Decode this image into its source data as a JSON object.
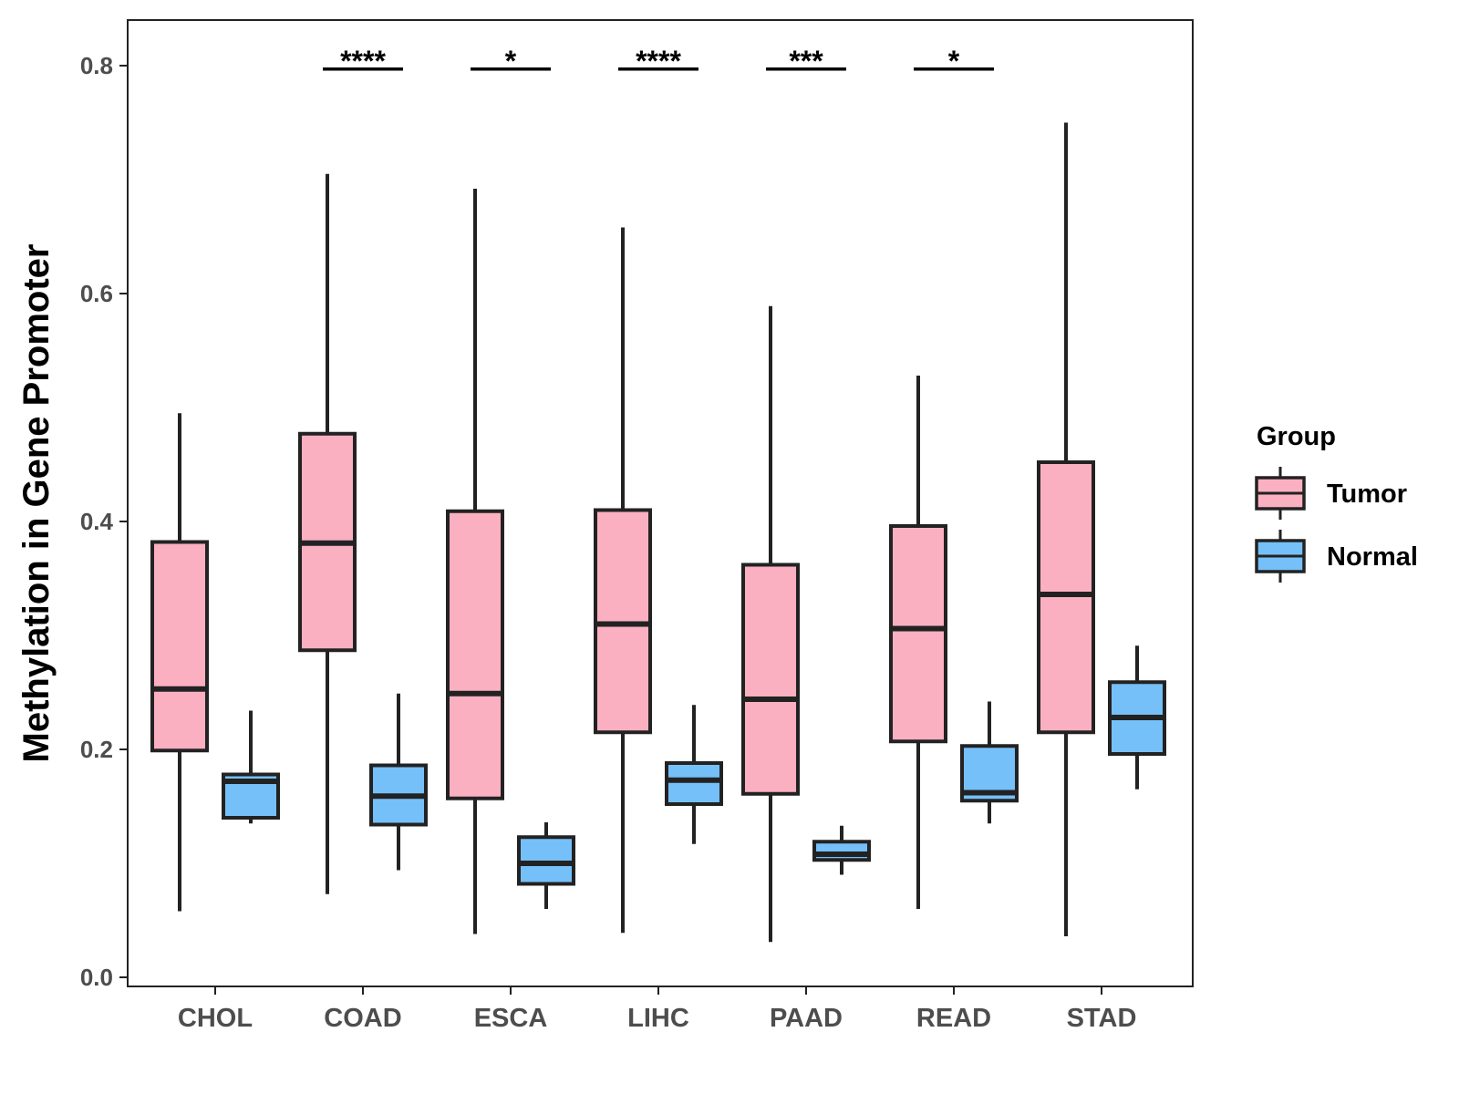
{
  "chart_data": {
    "type": "boxplot",
    "title": "",
    "xlabel": "",
    "ylabel": "Methylation in Gene Promoter",
    "ylim": [
      0,
      0.8
    ],
    "yticks": [
      "0.0",
      "0.2",
      "0.4",
      "0.6",
      "0.8"
    ],
    "ytick_values": [
      0,
      0.2,
      0.4,
      0.6,
      0.8
    ],
    "categories": [
      "CHOL",
      "COAD",
      "ESCA",
      "LIHC",
      "PAAD",
      "READ",
      "STAD"
    ],
    "legend": {
      "title": "Group",
      "position": "right"
    },
    "series": [
      {
        "name": "Tumor",
        "color": "#FBB0C1",
        "boxes": [
          {
            "category": "CHOL",
            "min": 0.058,
            "q1": 0.199,
            "median": 0.253,
            "q3": 0.382,
            "max": 0.495
          },
          {
            "category": "COAD",
            "min": 0.073,
            "q1": 0.287,
            "median": 0.381,
            "q3": 0.477,
            "max": 0.705
          },
          {
            "category": "ESCA",
            "min": 0.038,
            "q1": 0.157,
            "median": 0.249,
            "q3": 0.409,
            "max": 0.692
          },
          {
            "category": "LIHC",
            "min": 0.039,
            "q1": 0.215,
            "median": 0.31,
            "q3": 0.41,
            "max": 0.658
          },
          {
            "category": "PAAD",
            "min": 0.031,
            "q1": 0.161,
            "median": 0.244,
            "q3": 0.362,
            "max": 0.589
          },
          {
            "category": "READ",
            "min": 0.06,
            "q1": 0.207,
            "median": 0.306,
            "q3": 0.396,
            "max": 0.528
          },
          {
            "category": "STAD",
            "min": 0.036,
            "q1": 0.215,
            "median": 0.336,
            "q3": 0.452,
            "max": 0.75
          }
        ]
      },
      {
        "name": "Normal",
        "color": "#75C0F8",
        "boxes": [
          {
            "category": "CHOL",
            "min": 0.135,
            "q1": 0.14,
            "median": 0.172,
            "q3": 0.178,
            "max": 0.234
          },
          {
            "category": "COAD",
            "min": 0.094,
            "q1": 0.134,
            "median": 0.159,
            "q3": 0.186,
            "max": 0.249
          },
          {
            "category": "ESCA",
            "min": 0.06,
            "q1": 0.082,
            "median": 0.1,
            "q3": 0.123,
            "max": 0.136
          },
          {
            "category": "LIHC",
            "min": 0.117,
            "q1": 0.152,
            "median": 0.173,
            "q3": 0.188,
            "max": 0.239
          },
          {
            "category": "PAAD",
            "min": 0.09,
            "q1": 0.103,
            "median": 0.108,
            "q3": 0.119,
            "max": 0.133
          },
          {
            "category": "READ",
            "min": 0.135,
            "q1": 0.155,
            "median": 0.162,
            "q3": 0.203,
            "max": 0.242
          },
          {
            "category": "STAD",
            "min": 0.165,
            "q1": 0.196,
            "median": 0.228,
            "q3": 0.259,
            "max": 0.291
          }
        ]
      }
    ],
    "annotations": [
      {
        "category": "COAD",
        "label": "****",
        "y": 0.797
      },
      {
        "category": "ESCA",
        "label": "*",
        "y": 0.797
      },
      {
        "category": "LIHC",
        "label": "****",
        "y": 0.797
      },
      {
        "category": "PAAD",
        "label": "***",
        "y": 0.797
      },
      {
        "category": "READ",
        "label": "*",
        "y": 0.797
      }
    ]
  }
}
